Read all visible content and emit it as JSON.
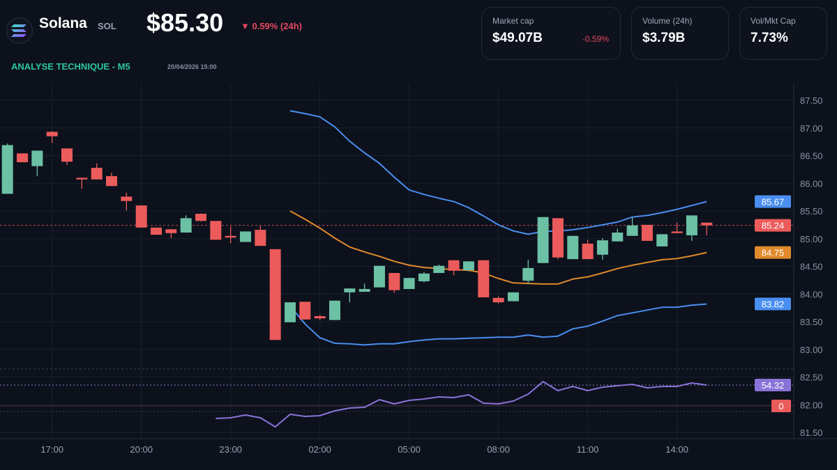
{
  "header": {
    "coin": "Solana",
    "symbol": "SOL",
    "price": "$85.30",
    "change": "▼ 0.59% (24h)",
    "logo_icon": "solana-logo-icon"
  },
  "analysis": {
    "title": "ANALYSE TECHNIQUE - M5",
    "timestamp": "20/04/2026 15:00"
  },
  "stats": [
    {
      "label": "Market cap",
      "value": "$49.07B",
      "change": "-0.59%"
    },
    {
      "label": "Volume (24h)",
      "value": "$3.79B"
    },
    {
      "label": "Vol/Mkt Cap",
      "value": "7.73%"
    }
  ],
  "colors": {
    "up": "#6cc0a4",
    "down": "#ec5b5b",
    "band": "#4a8ef0",
    "mid": "#e08a2c",
    "osc": "#8a73d8",
    "accent": "#2fc79c"
  },
  "chart_data": {
    "type": "candlestick",
    "y_ticks": [
      "87.50",
      "87.00",
      "86.50",
      "86.00",
      "85.50",
      "85.00",
      "84.50",
      "84.00",
      "83.50",
      "83.00",
      "82.50",
      "82.00",
      "81.50"
    ],
    "ylim": [
      81.5,
      87.5
    ],
    "x_ticks": [
      "17:00",
      "20:00",
      "23:00",
      "02:00",
      "05:00",
      "08:00",
      "11:00",
      "14:00"
    ],
    "grid": true,
    "current_price": 85.24,
    "candles": [
      [
        "15:30",
        85.81,
        86.72,
        85.81,
        86.69
      ],
      [
        "16:00",
        86.54,
        86.54,
        86.38,
        86.38
      ],
      [
        "16:30",
        86.31,
        86.59,
        86.13,
        86.59
      ],
      [
        "17:00",
        86.93,
        86.94,
        86.73,
        86.85
      ],
      [
        "17:30",
        86.63,
        86.63,
        86.33,
        86.39
      ],
      [
        "18:00",
        86.1,
        86.1,
        85.9,
        86.07
      ],
      [
        "18:30",
        86.28,
        86.36,
        86.07,
        86.07
      ],
      [
        "19:00",
        86.13,
        86.19,
        85.95,
        85.95
      ],
      [
        "19:30",
        85.76,
        85.83,
        85.51,
        85.68
      ],
      [
        "20:00",
        85.6,
        85.6,
        85.2,
        85.2
      ],
      [
        "20:30",
        85.2,
        85.2,
        85.07,
        85.07
      ],
      [
        "21:00",
        85.17,
        85.17,
        85.01,
        85.1
      ],
      [
        "21:30",
        85.11,
        85.42,
        85.11,
        85.37
      ],
      [
        "22:00",
        85.45,
        85.45,
        85.31,
        85.32
      ],
      [
        "22:30",
        85.32,
        85.32,
        84.98,
        84.98
      ],
      [
        "23:00",
        85.05,
        85.22,
        84.92,
        85.02
      ],
      [
        "23:30",
        84.94,
        85.13,
        84.94,
        85.13
      ],
      [
        "00:00",
        85.16,
        85.23,
        84.87,
        84.87
      ],
      [
        "00:30",
        84.81,
        84.81,
        83.17,
        83.17
      ],
      [
        "01:00",
        83.49,
        83.85,
        83.49,
        83.85
      ],
      [
        "01:30",
        83.86,
        83.86,
        83.54,
        83.54
      ],
      [
        "02:00",
        83.6,
        83.62,
        83.53,
        83.56
      ],
      [
        "02:30",
        83.53,
        83.88,
        83.53,
        83.88
      ],
      [
        "03:00",
        84.03,
        84.1,
        83.85,
        84.1
      ],
      [
        "03:30",
        84.04,
        84.19,
        84.04,
        84.09
      ],
      [
        "04:00",
        84.12,
        84.51,
        84.12,
        84.51
      ],
      [
        "04:30",
        84.38,
        84.38,
        84.02,
        84.07
      ],
      [
        "05:00",
        84.09,
        84.29,
        84.09,
        84.29
      ],
      [
        "05:30",
        84.23,
        84.4,
        84.21,
        84.37
      ],
      [
        "06:00",
        84.38,
        84.53,
        84.38,
        84.51
      ],
      [
        "06:30",
        84.61,
        84.61,
        84.34,
        84.42
      ],
      [
        "07:00",
        84.43,
        84.59,
        84.41,
        84.59
      ],
      [
        "07:30",
        84.61,
        84.61,
        83.94,
        83.94
      ],
      [
        "08:00",
        83.93,
        83.96,
        83.83,
        83.85
      ],
      [
        "08:30",
        83.87,
        84.03,
        83.87,
        84.03
      ],
      [
        "09:00",
        84.24,
        84.62,
        84.18,
        84.47
      ],
      [
        "09:30",
        84.56,
        85.39,
        84.56,
        85.39
      ],
      [
        "10:00",
        85.37,
        85.37,
        84.63,
        84.66
      ],
      [
        "10:30",
        84.63,
        85.05,
        84.63,
        85.05
      ],
      [
        "11:00",
        84.91,
        84.98,
        84.63,
        84.63
      ],
      [
        "11:30",
        84.71,
        85.01,
        84.62,
        84.97
      ],
      [
        "12:00",
        84.95,
        85.18,
        84.95,
        85.11
      ],
      [
        "12:30",
        85.05,
        85.38,
        85.05,
        85.24
      ],
      [
        "13:00",
        85.25,
        85.25,
        84.96,
        84.96
      ],
      [
        "13:30",
        84.86,
        85.08,
        84.86,
        85.08
      ],
      [
        "14:00",
        85.13,
        85.29,
        85.1,
        85.1
      ],
      [
        "14:30",
        85.06,
        85.42,
        84.96,
        85.42
      ],
      [
        "15:00",
        85.29,
        85.29,
        85.06,
        85.24
      ]
    ],
    "upper_band": {
      "start": "01:00",
      "values": [
        87.31,
        87.26,
        87.2,
        87.02,
        86.76,
        86.55,
        86.36,
        86.11,
        85.88,
        85.8,
        85.73,
        85.67,
        85.56,
        85.41,
        85.25,
        85.14,
        85.08,
        85.13,
        85.14,
        85.16,
        85.2,
        85.25,
        85.3,
        85.39,
        85.42,
        85.47,
        85.53,
        85.6,
        85.67
      ],
      "last": "85.67"
    },
    "middle_band": {
      "start": "01:00",
      "values": [
        85.5,
        85.35,
        85.19,
        85.01,
        84.85,
        84.76,
        84.68,
        84.59,
        84.52,
        84.48,
        84.46,
        84.44,
        84.43,
        84.38,
        84.28,
        84.2,
        84.19,
        84.18,
        84.18,
        84.27,
        84.31,
        84.38,
        84.46,
        84.52,
        84.57,
        84.62,
        84.64,
        84.69,
        84.75
      ],
      "last": "84.75"
    },
    "lower_band": {
      "start": "01:00",
      "values": [
        83.78,
        83.46,
        83.21,
        83.11,
        83.1,
        83.08,
        83.1,
        83.1,
        83.14,
        83.17,
        83.19,
        83.19,
        83.2,
        83.21,
        83.22,
        83.22,
        83.26,
        83.22,
        83.24,
        83.37,
        83.42,
        83.51,
        83.61,
        83.66,
        83.71,
        83.76,
        83.76,
        83.8,
        83.82
      ],
      "last": "83.82"
    },
    "oscillator": {
      "start": "22:30",
      "values": [
        25.5,
        26.1,
        28.5,
        26.1,
        18.3,
        29.1,
        27.3,
        27.9,
        32.1,
        34.5,
        35.1,
        41.7,
        38.1,
        41.1,
        42.3,
        44.1,
        43.5,
        45.9,
        38.7,
        38.1,
        40.5,
        46.5,
        57.3,
        49.5,
        53.1,
        49.5,
        52.5,
        53.7,
        54.9,
        51.9,
        53.1,
        53.1,
        56.1,
        54.32
      ],
      "last": "54.32"
    },
    "zero_label": "0",
    "price_label": "85.24"
  }
}
